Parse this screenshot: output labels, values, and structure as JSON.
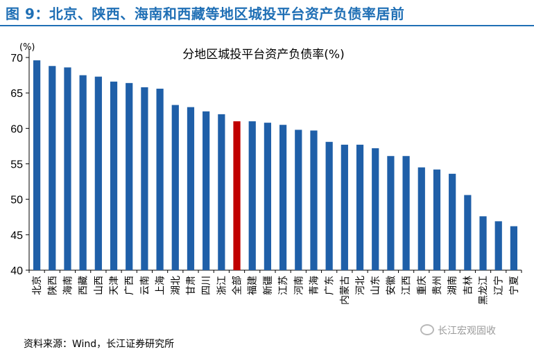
{
  "header": {
    "title": "图 9：北京、陕西、海南和西藏等地区城投平台资产负债率居前"
  },
  "chart_data": {
    "type": "bar",
    "title": "分地区城投平台资产负债率(%)",
    "unit_label": "(%)",
    "ylim": [
      40,
      70
    ],
    "yticks": [
      40,
      45,
      50,
      55,
      60,
      65,
      70
    ],
    "grid": false,
    "bar_color": "#1f5fa8",
    "highlight_color": "#c00000",
    "highlight_index": 13,
    "categories": [
      "北京",
      "陕西",
      "海南",
      "西藏",
      "山西",
      "天津",
      "广西",
      "云南",
      "上海",
      "湖北",
      "甘肃",
      "四川",
      "浙江",
      "全部",
      "福建",
      "新疆",
      "江苏",
      "河南",
      "青海",
      "广东",
      "内蒙古",
      "河北",
      "山东",
      "安徽",
      "江西",
      "重庆",
      "贵州",
      "湖南",
      "吉林",
      "黑龙江",
      "辽宁",
      "宁夏"
    ],
    "values": [
      69.6,
      68.8,
      68.6,
      67.5,
      67.3,
      66.6,
      66.4,
      65.8,
      65.6,
      63.3,
      63.0,
      62.4,
      62.0,
      61.0,
      61.0,
      60.8,
      60.5,
      59.8,
      59.7,
      58.1,
      57.7,
      57.7,
      57.2,
      56.1,
      56.1,
      54.5,
      54.2,
      53.6,
      50.6,
      47.6,
      46.9,
      46.2
    ]
  },
  "footer": {
    "source": "资料来源：Wind，长江证券研究所",
    "watermark": "长江宏观固收",
    "watermark_icon": "wechat-icon"
  }
}
